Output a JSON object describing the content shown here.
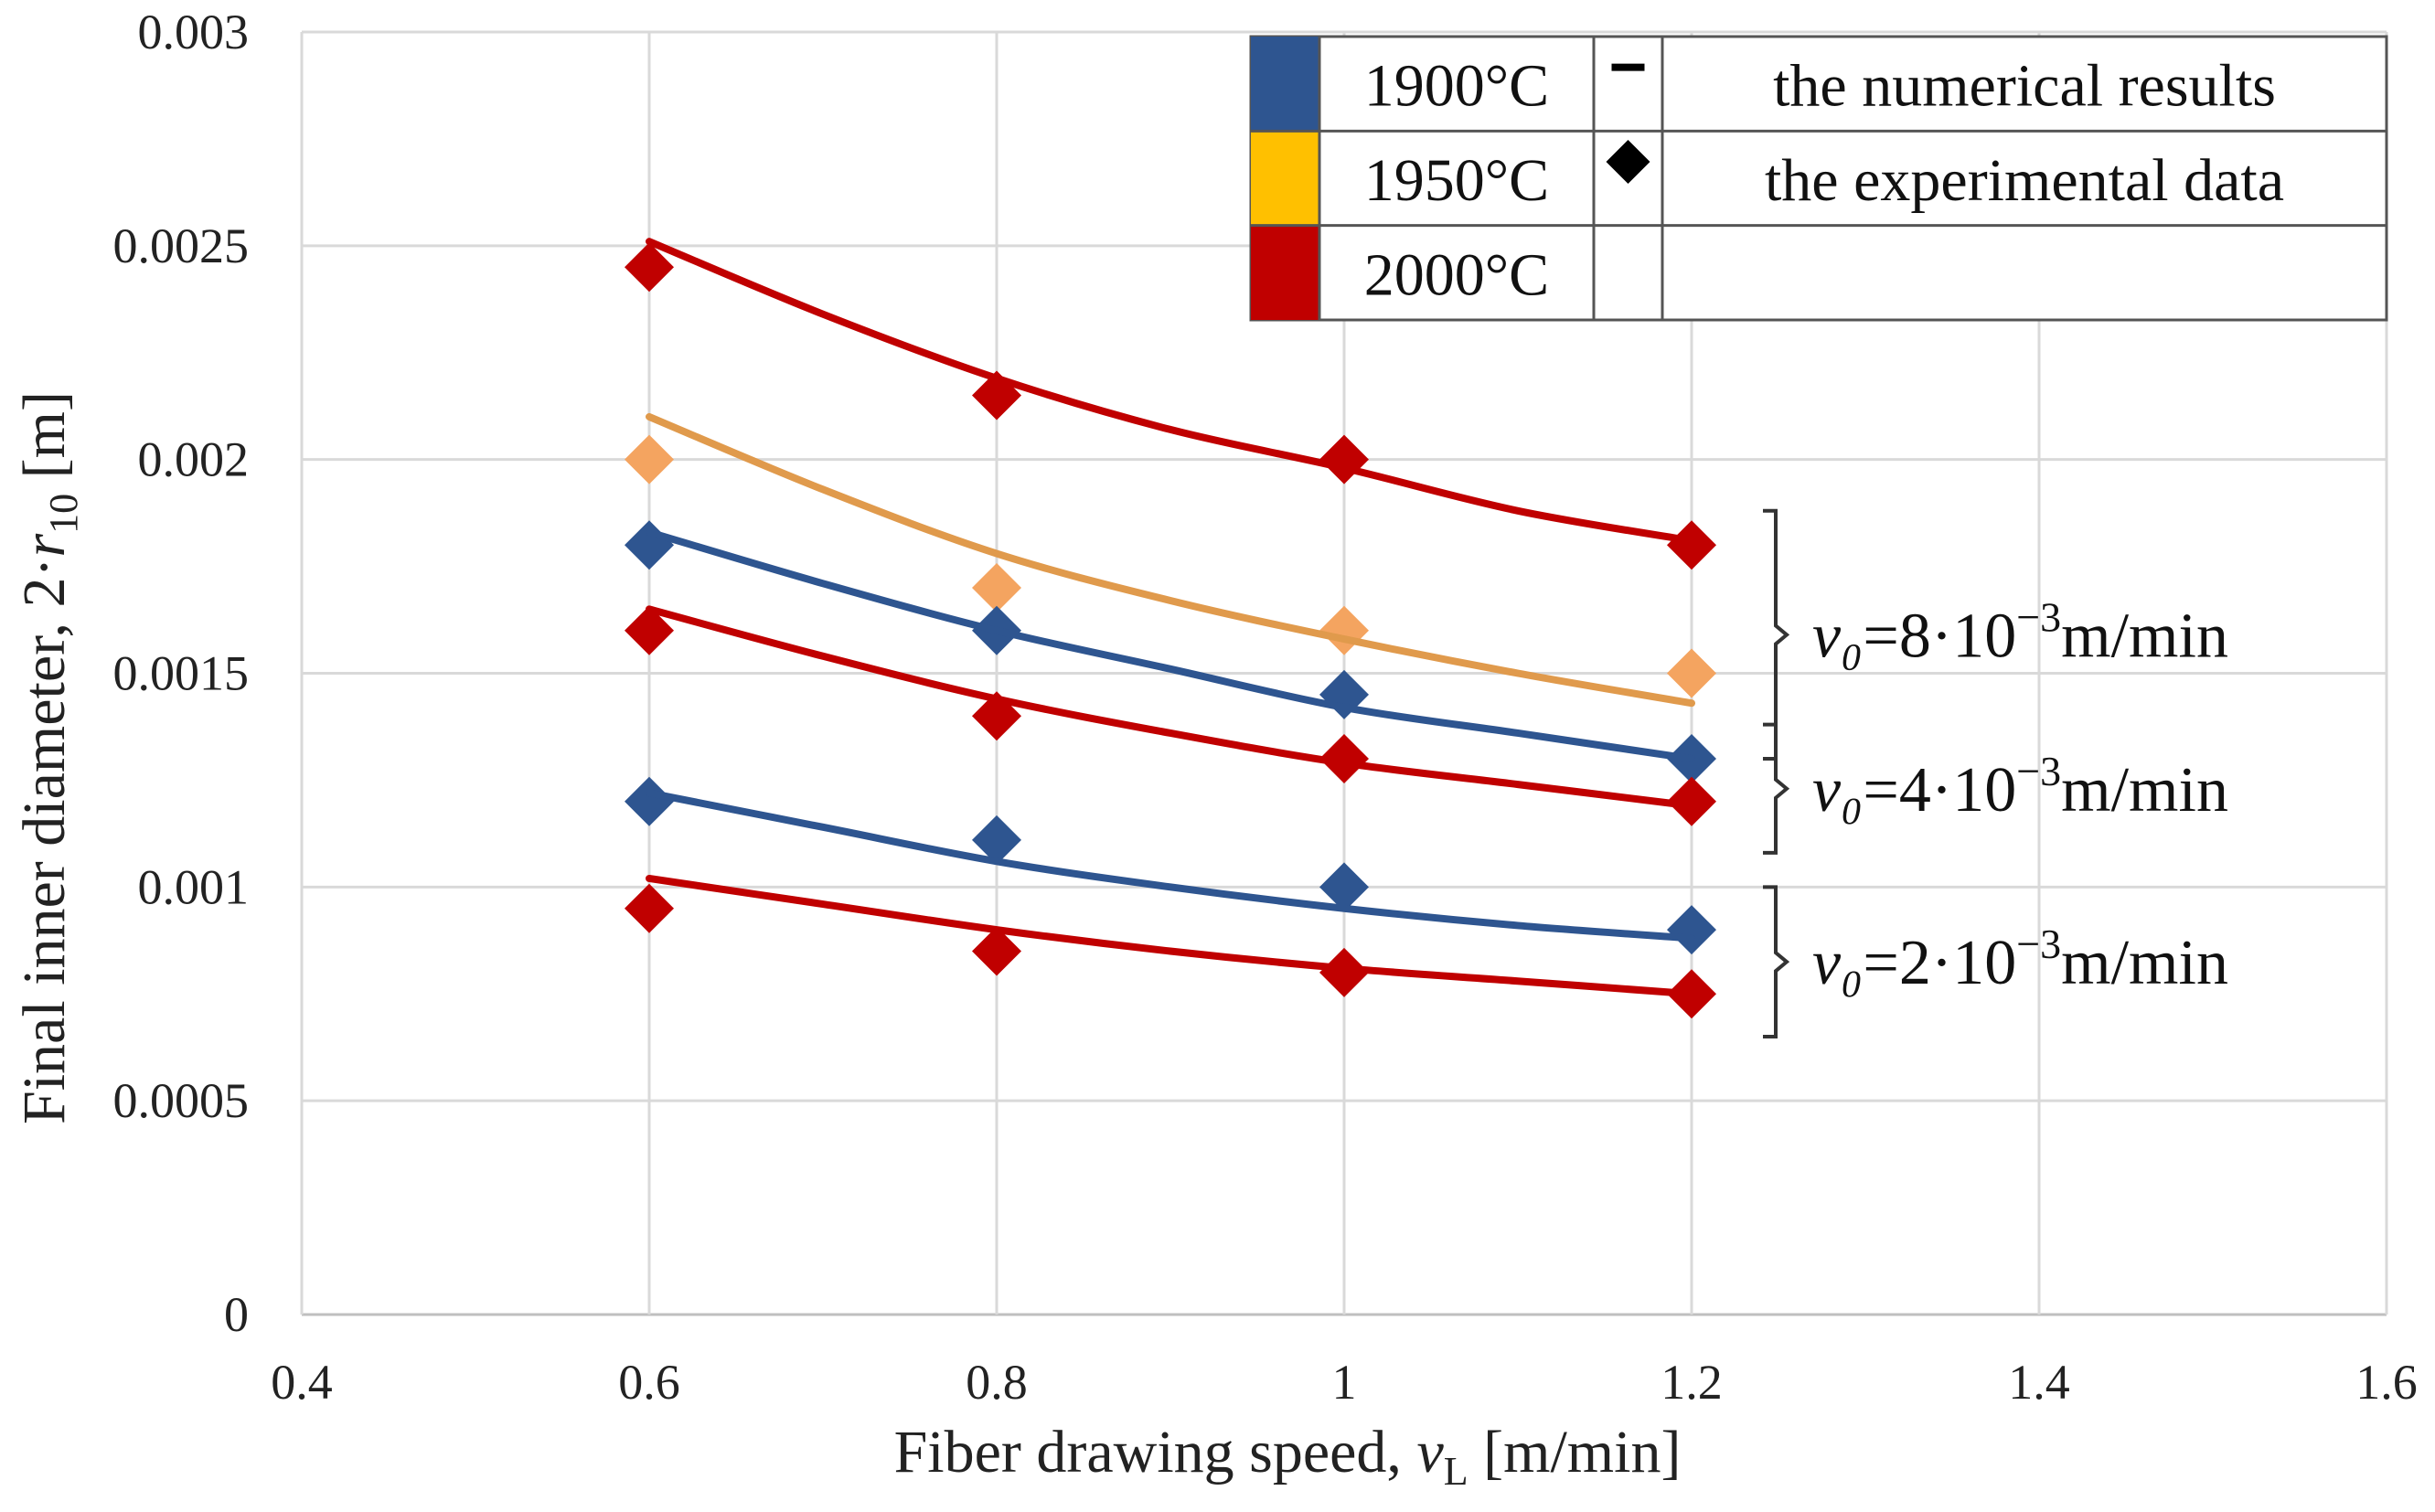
{
  "chart_data": {
    "type": "line",
    "title": "",
    "xlabel": "Fiber drawing speed, v_L [m/min]",
    "ylabel": "Final inner diameter, 2·r_10 [m]",
    "xlim": [
      0.4,
      1.6
    ],
    "ylim": [
      0,
      0.003
    ],
    "xticks": [
      0.4,
      0.6,
      0.8,
      1.0,
      1.2,
      1.4,
      1.6
    ],
    "xtick_labels": [
      "0.4",
      "0.6",
      "0.8",
      "1",
      "1.2",
      "1.4",
      "1.6"
    ],
    "yticks": [
      0,
      0.0005,
      0.001,
      0.0015,
      0.002,
      0.0025,
      0.003
    ],
    "ytick_labels": [
      "0",
      "0.0005",
      "0.001",
      "0.0015",
      "0.002",
      "0.0025",
      "0.003"
    ],
    "grid": true,
    "series": [
      {
        "name": "2000°C, v0=8·10⁻³ m/min",
        "temperature": "2000°C",
        "v0": "8·10⁻³ m/min",
        "color": "#c00000",
        "numerical": [
          [
            0.6,
            0.00251
          ],
          [
            0.7,
            0.00234
          ],
          [
            0.8,
            0.00219
          ],
          [
            0.9,
            0.00207
          ],
          [
            1.0,
            0.00198
          ],
          [
            1.1,
            0.00188
          ],
          [
            1.2,
            0.00181
          ]
        ],
        "experimental": [
          [
            0.6,
            0.00245
          ],
          [
            0.8,
            0.00215
          ],
          [
            1.0,
            0.002
          ],
          [
            1.2,
            0.0018
          ]
        ]
      },
      {
        "name": "1950°C, v0=8·10⁻³ m/min",
        "temperature": "1950°C",
        "v0": "8·10⁻³ m/min",
        "color": "#e09a4c",
        "marker_color": "#f4a460",
        "numerical": [
          [
            0.6,
            0.0021
          ],
          [
            0.7,
            0.00193
          ],
          [
            0.8,
            0.00178
          ],
          [
            0.9,
            0.00167
          ],
          [
            1.0,
            0.00158
          ],
          [
            1.1,
            0.0015
          ],
          [
            1.2,
            0.00143
          ]
        ],
        "experimental": [
          [
            0.6,
            0.002
          ],
          [
            0.8,
            0.0017
          ],
          [
            1.0,
            0.0016
          ],
          [
            1.2,
            0.0015
          ]
        ]
      },
      {
        "name": "1900°C, v0=8·10⁻³ m/min",
        "temperature": "1900°C",
        "v0": "8·10⁻³ m/min",
        "color": "#2e5590",
        "numerical": [
          [
            0.6,
            0.00183
          ],
          [
            0.7,
            0.00171
          ],
          [
            0.8,
            0.0016
          ],
          [
            0.9,
            0.00151
          ],
          [
            1.0,
            0.00142
          ],
          [
            1.1,
            0.00136
          ],
          [
            1.2,
            0.0013
          ]
        ],
        "experimental": [
          [
            0.6,
            0.0018
          ],
          [
            0.8,
            0.0016
          ],
          [
            1.0,
            0.00145
          ],
          [
            1.2,
            0.0013
          ]
        ]
      },
      {
        "name": "2000°C, v0=4·10⁻³ m/min",
        "temperature": "2000°C",
        "v0": "4·10⁻³ m/min",
        "color": "#c00000",
        "numerical": [
          [
            0.6,
            0.00165
          ],
          [
            0.7,
            0.00154
          ],
          [
            0.8,
            0.00144
          ],
          [
            0.9,
            0.00136
          ],
          [
            1.0,
            0.00129
          ],
          [
            1.1,
            0.00124
          ],
          [
            1.2,
            0.00119
          ]
        ],
        "experimental": [
          [
            0.6,
            0.0016
          ],
          [
            0.8,
            0.0014
          ],
          [
            1.0,
            0.0013
          ],
          [
            1.2,
            0.0012
          ]
        ]
      },
      {
        "name": "1900°C, v0=2·10⁻³ m/min",
        "temperature": "1900°C",
        "v0": "2·10⁻³ m/min",
        "color": "#2e5590",
        "numerical": [
          [
            0.6,
            0.00122
          ],
          [
            0.7,
            0.00114
          ],
          [
            0.8,
            0.00106
          ],
          [
            0.9,
            0.001
          ],
          [
            1.0,
            0.00095
          ],
          [
            1.1,
            0.00091
          ],
          [
            1.2,
            0.00088
          ]
        ],
        "experimental": [
          [
            0.6,
            0.0012
          ],
          [
            0.8,
            0.00111
          ],
          [
            1.0,
            0.001
          ],
          [
            1.2,
            0.0009
          ]
        ]
      },
      {
        "name": "2000°C, v0=2·10⁻³ m/min",
        "temperature": "2000°C",
        "v0": "2·10⁻³ m/min",
        "color": "#c00000",
        "numerical": [
          [
            0.6,
            0.00102
          ],
          [
            0.7,
            0.00096
          ],
          [
            0.8,
            0.0009
          ],
          [
            0.9,
            0.00085
          ],
          [
            1.0,
            0.00081
          ],
          [
            1.1,
            0.00078
          ],
          [
            1.2,
            0.00075
          ]
        ],
        "experimental": [
          [
            0.6,
            0.00095
          ],
          [
            0.8,
            0.00085
          ],
          [
            1.0,
            0.0008
          ],
          [
            1.2,
            0.00075
          ]
        ]
      }
    ],
    "legend": {
      "placement": "top-right",
      "rows": [
        {
          "swatch_color": "#2e5590",
          "temperature": "1900°C",
          "symbol": "line",
          "description": "the numerical results"
        },
        {
          "swatch_color": "#ffc000",
          "temperature": "1950°C",
          "symbol": "diamond",
          "description": "the experimental data"
        },
        {
          "swatch_color": "#c00000",
          "temperature": "2000°C",
          "symbol": "",
          "description": ""
        }
      ]
    },
    "annotations": [
      {
        "symbol": "v₀",
        "value": "=8·10",
        "exponent": "−3",
        "unit": "m/min",
        "y_range": [
          0.0013,
          0.00188
        ]
      },
      {
        "symbol": "v₀",
        "value": "=4·10",
        "exponent": "−3",
        "unit": "m/min",
        "y_range": [
          0.00108,
          0.00138
        ]
      },
      {
        "symbol": "v₀",
        "value": "=2·10",
        "exponent": "−3",
        "unit": "m/min",
        "y_range": [
          0.00065,
          0.001
        ]
      }
    ]
  },
  "axis_titles": {
    "x_main": "Fiber drawing speed, ",
    "x_var": "v",
    "x_sub": "L",
    "x_unit": " [m/min]",
    "y_main": "Final inner diameter, 2·",
    "y_var": "r",
    "y_sub": "10",
    "y_unit": " [m]"
  }
}
